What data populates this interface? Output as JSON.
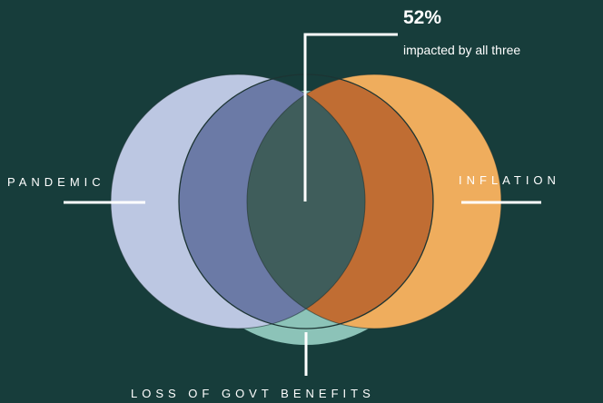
{
  "colors": {
    "background": "#173d3b",
    "pandemic": "#bcc7e2",
    "inflation": "#efad5d",
    "loss_of_benefits": "#8cc3b8",
    "pandemic_and_benefits": "#6b7aa6",
    "inflation_and_benefits": "#c06d33",
    "all_three": "#3f5d5b",
    "outline": "#1c3433",
    "callout_lines": "#ffffff"
  },
  "sets": {
    "pandemic": "PANDEMIC",
    "inflation": "INFLATION",
    "loss_of_benefits": "LOSS OF GOVT BENEFITS"
  },
  "callout": {
    "value": "52%",
    "caption": "impacted by all three"
  }
}
